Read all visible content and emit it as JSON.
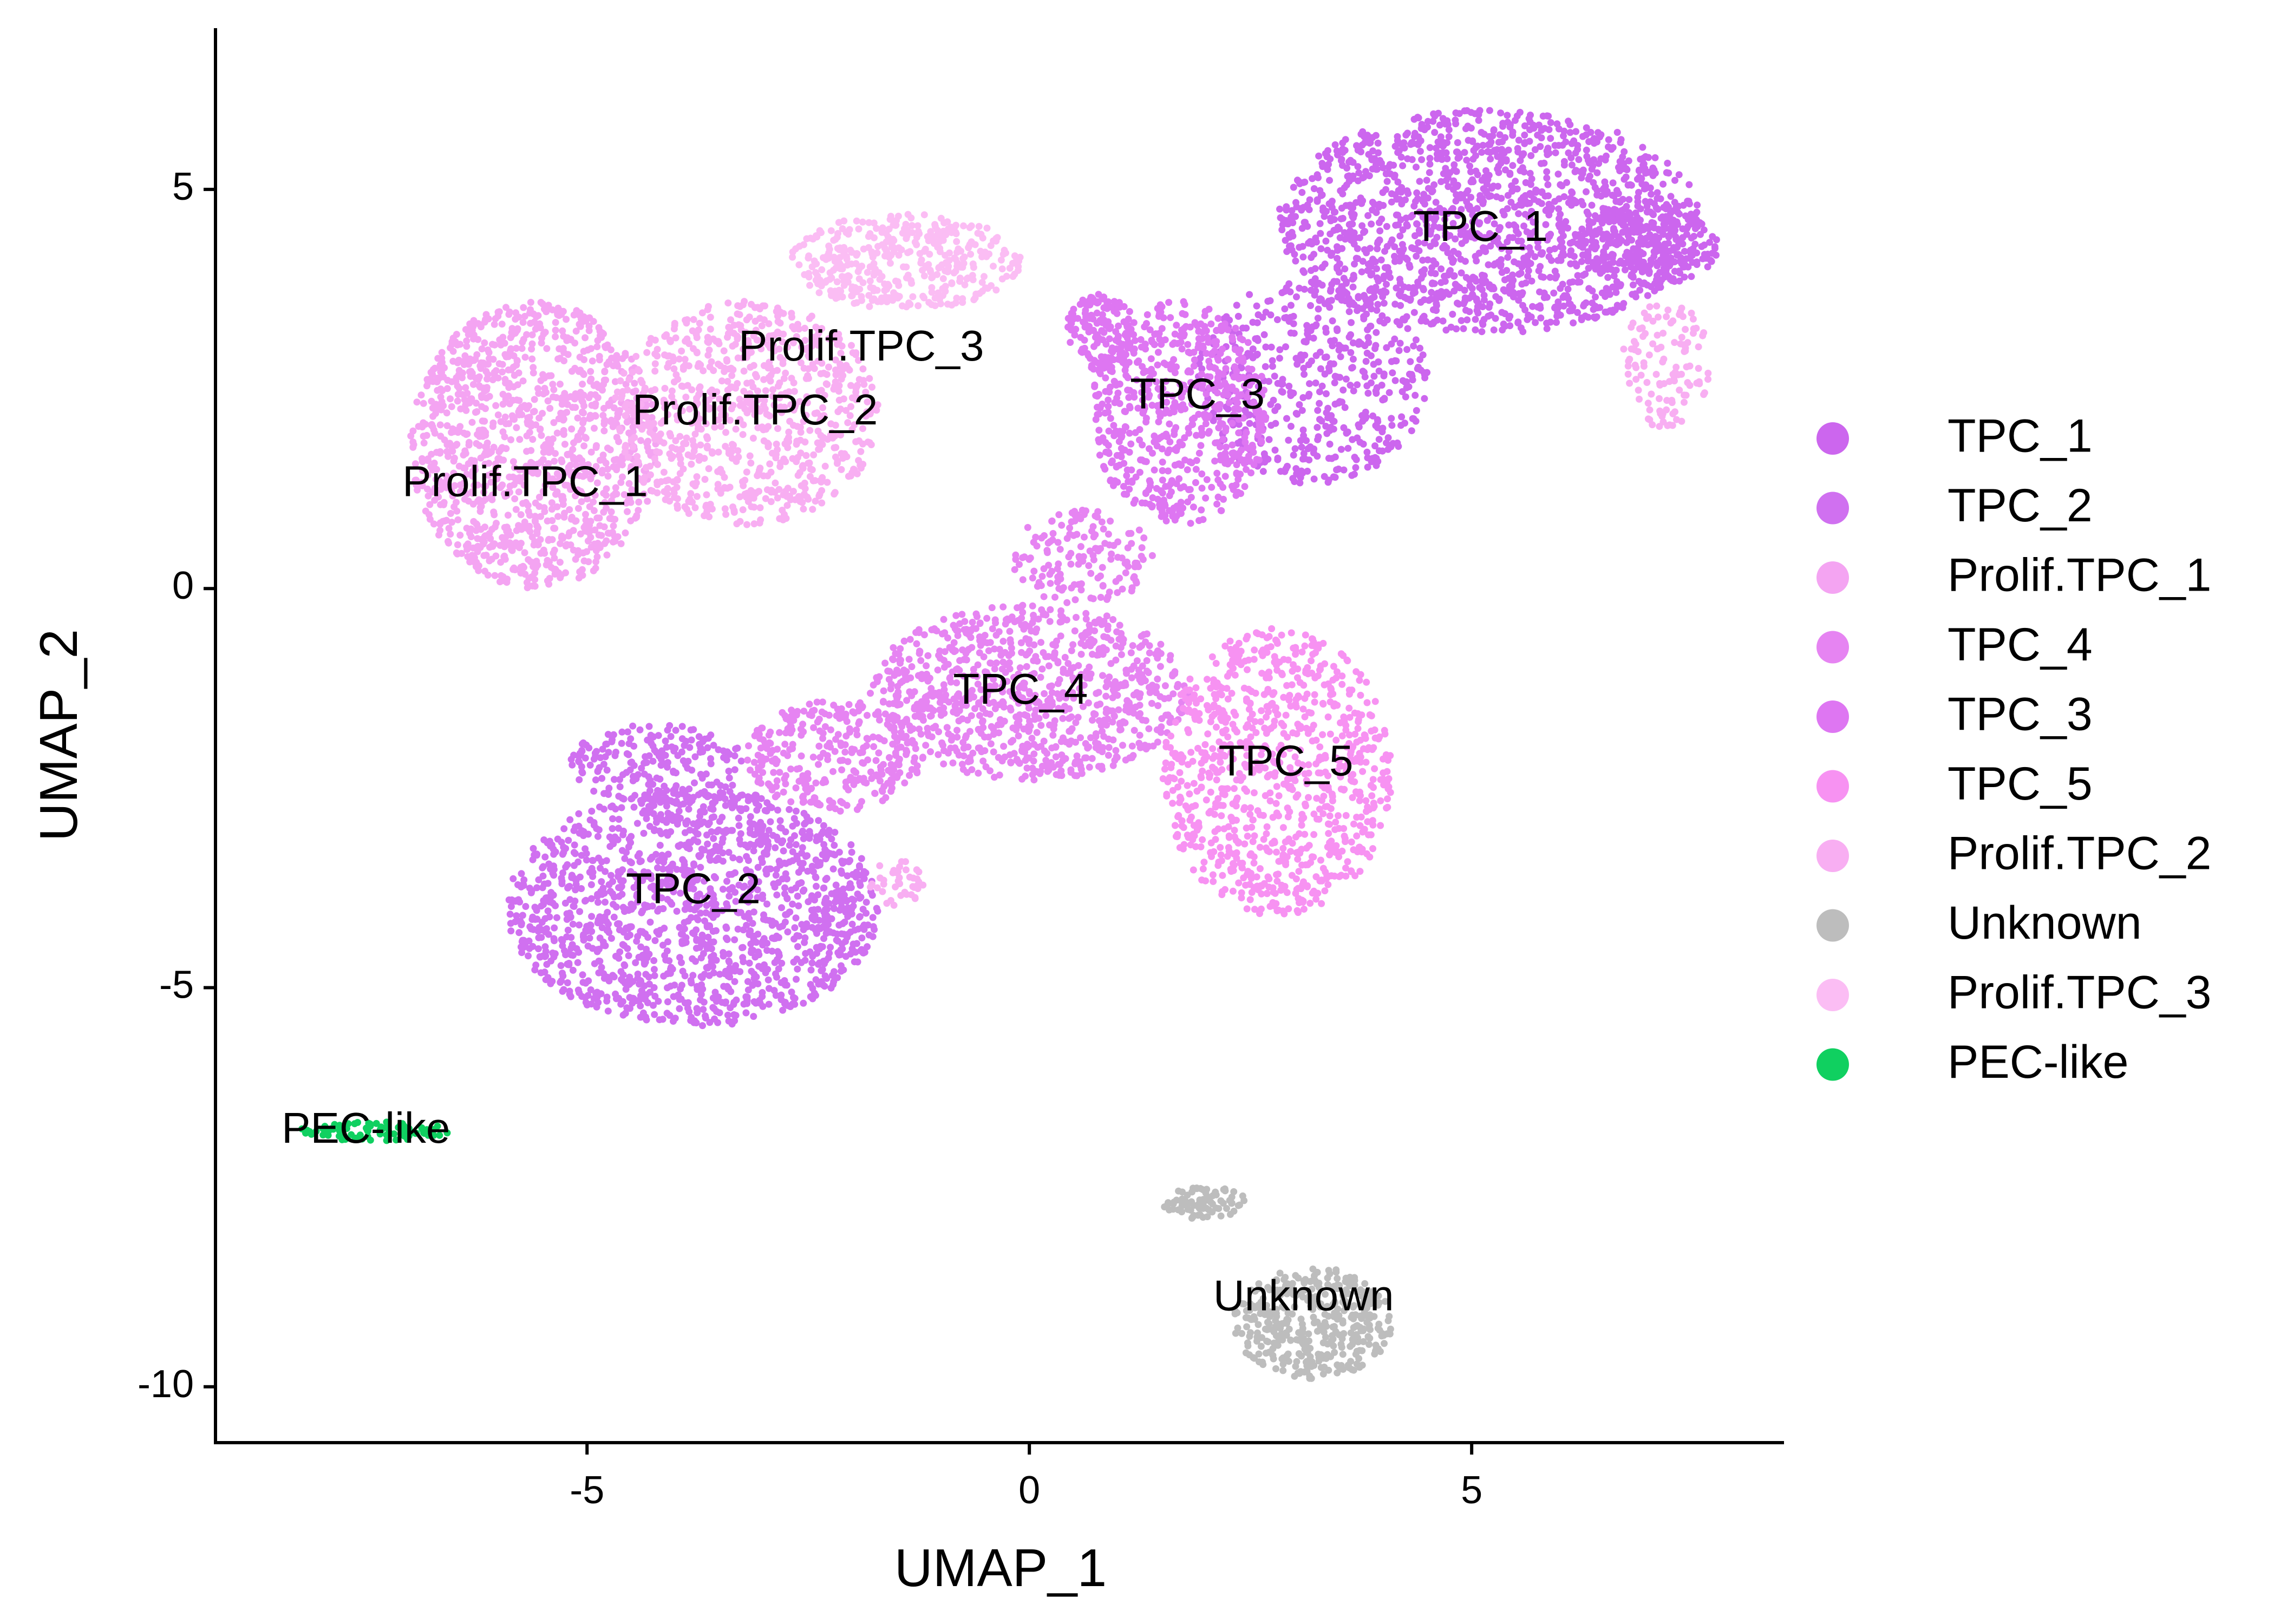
{
  "chart_data": {
    "type": "scatter",
    "xlabel": "UMAP_1",
    "ylabel": "UMAP_2",
    "xlim": [
      -9.2,
      8.5
    ],
    "ylim": [
      -10.7,
      7.0
    ],
    "x_ticks": [
      -5,
      0,
      5
    ],
    "y_ticks": [
      -10,
      -5,
      0,
      5
    ],
    "x_tick_labels": [
      "-5",
      "0",
      "5"
    ],
    "y_tick_labels": [
      "-10",
      "-5",
      "0",
      "5"
    ],
    "grid": false,
    "legend_position": "right",
    "clusters": [
      {
        "name": "TPC_1",
        "color": "#CC66EE",
        "label_x": 5.1,
        "label_y": 4.5,
        "blobs": [
          {
            "cx": 5.2,
            "cy": 4.6,
            "rx": 2.4,
            "ry": 1.4,
            "n": 1500
          },
          {
            "cx": 3.2,
            "cy": 2.6,
            "rx": 1.3,
            "ry": 1.3,
            "n": 500
          },
          {
            "cx": 7.0,
            "cy": 4.3,
            "rx": 0.8,
            "ry": 0.5,
            "n": 250
          }
        ]
      },
      {
        "name": "TPC_2",
        "color": "#D070F0",
        "label_x": -3.8,
        "label_y": -3.8,
        "blobs": [
          {
            "cx": -3.8,
            "cy": -4.0,
            "rx": 2.1,
            "ry": 1.5,
            "n": 1500
          },
          {
            "cx": -4.2,
            "cy": -2.2,
            "rx": 1.0,
            "ry": 0.5,
            "n": 200
          }
        ]
      },
      {
        "name": "Prolif.TPC_1",
        "color": "#F4A4F2",
        "label_x": -5.7,
        "label_y": 1.3,
        "blobs": [
          {
            "cx": -5.6,
            "cy": 1.8,
            "rx": 1.4,
            "ry": 1.8,
            "n": 1200
          }
        ]
      },
      {
        "name": "TPC_4",
        "color": "#E684F2",
        "label_x": -0.1,
        "label_y": -1.3,
        "blobs": [
          {
            "cx": 0.0,
            "cy": -1.3,
            "rx": 1.8,
            "ry": 1.1,
            "n": 900
          },
          {
            "cx": -2.2,
            "cy": -2.1,
            "rx": 1.0,
            "ry": 0.7,
            "n": 300
          },
          {
            "cx": 0.6,
            "cy": 0.4,
            "rx": 0.8,
            "ry": 0.6,
            "n": 150
          }
        ]
      },
      {
        "name": "TPC_3",
        "color": "#DE76F2",
        "label_x": 1.9,
        "label_y": 2.4,
        "blobs": [
          {
            "cx": 1.7,
            "cy": 2.2,
            "rx": 1.0,
            "ry": 1.4,
            "n": 600
          },
          {
            "cx": 0.8,
            "cy": 3.2,
            "rx": 0.4,
            "ry": 0.5,
            "n": 150
          }
        ]
      },
      {
        "name": "TPC_5",
        "color": "#F792F2",
        "label_x": 2.9,
        "label_y": -2.2,
        "blobs": [
          {
            "cx": 2.8,
            "cy": -2.3,
            "rx": 1.3,
            "ry": 1.8,
            "n": 900
          }
        ]
      },
      {
        "name": "Prolif.TPC_2",
        "color": "#F8AEF2",
        "label_x": -3.1,
        "label_y": 2.2,
        "blobs": [
          {
            "cx": -3.2,
            "cy": 2.2,
            "rx": 1.5,
            "ry": 1.4,
            "n": 800
          },
          {
            "cx": 7.2,
            "cy": 2.8,
            "rx": 0.5,
            "ry": 0.8,
            "n": 120
          },
          {
            "cx": -1.5,
            "cy": -3.7,
            "rx": 0.3,
            "ry": 0.3,
            "n": 40
          }
        ]
      },
      {
        "name": "Unknown",
        "color": "#BDBDBD",
        "label_x": 3.1,
        "label_y": -8.9,
        "blobs": [
          {
            "cx": 3.2,
            "cy": -9.2,
            "rx": 0.9,
            "ry": 0.7,
            "n": 400
          },
          {
            "cx": 2.0,
            "cy": -7.7,
            "rx": 0.5,
            "ry": 0.2,
            "n": 80
          }
        ]
      },
      {
        "name": "Prolif.TPC_3",
        "color": "#FBBDF4",
        "label_x": -1.9,
        "label_y": 3.0,
        "blobs": [
          {
            "cx": -1.4,
            "cy": 4.1,
            "rx": 1.3,
            "ry": 0.6,
            "n": 400
          }
        ]
      },
      {
        "name": "PEC-like",
        "color": "#10D060",
        "label_x": -7.5,
        "label_y": -6.8,
        "blobs": [
          {
            "cx": -7.4,
            "cy": -6.8,
            "rx": 0.9,
            "ry": 0.12,
            "n": 80
          }
        ]
      }
    ],
    "legend": [
      {
        "label": "TPC_1",
        "color": "#CC66EE"
      },
      {
        "label": "TPC_2",
        "color": "#D070F0"
      },
      {
        "label": "Prolif.TPC_1",
        "color": "#F4A4F2"
      },
      {
        "label": "TPC_4",
        "color": "#E684F2"
      },
      {
        "label": "TPC_3",
        "color": "#DE76F2"
      },
      {
        "label": "TPC_5",
        "color": "#F792F2"
      },
      {
        "label": "Prolif.TPC_2",
        "color": "#F8AEF2"
      },
      {
        "label": "Unknown",
        "color": "#BDBDBD"
      },
      {
        "label": "Prolif.TPC_3",
        "color": "#FBBDF4"
      },
      {
        "label": "PEC-like",
        "color": "#10D060"
      }
    ]
  }
}
